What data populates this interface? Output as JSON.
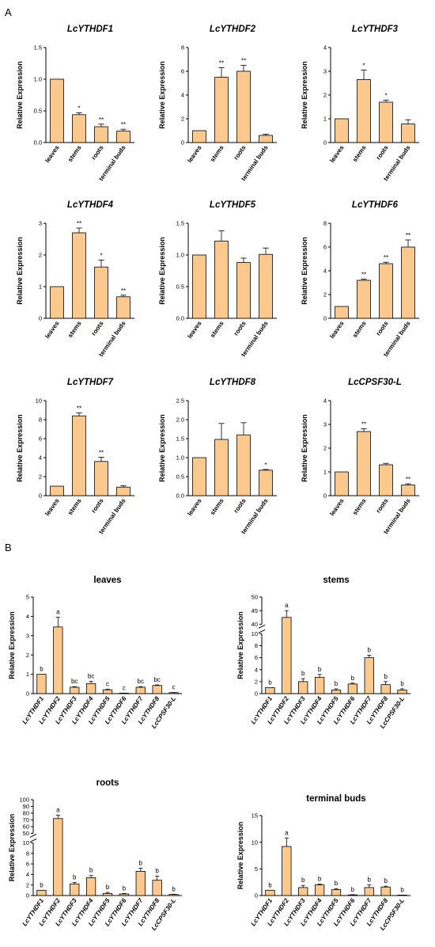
{
  "panel_labels": [
    "A",
    "B"
  ],
  "colors": {
    "bar_fill": "#FBC98E",
    "bar_stroke": "#000000"
  },
  "chart_data": [
    {
      "type": "bar",
      "title": "LcYTHDF1",
      "ylabel": "Relative Expression",
      "categories": [
        "leaves",
        "stems",
        "roots",
        "terminal buds"
      ],
      "values": [
        1.0,
        0.44,
        0.25,
        0.18
      ],
      "errors": [
        0,
        0.03,
        0.04,
        0.03
      ],
      "significance": [
        "",
        "*",
        "**",
        "**"
      ],
      "ylim": [
        0,
        1.5
      ],
      "yticks": [
        "0.0",
        "0.5",
        "1.0",
        "1.5"
      ]
    },
    {
      "type": "bar",
      "title": "LcYTHDF2",
      "ylabel": "Relative Expression",
      "categories": [
        "leaves",
        "stems",
        "roots",
        "terminal buds"
      ],
      "values": [
        1.0,
        5.5,
        6.0,
        0.6
      ],
      "errors": [
        0,
        0.8,
        0.5,
        0.1
      ],
      "significance": [
        "",
        "**",
        "**",
        ""
      ],
      "ylim": [
        0,
        8
      ],
      "yticks": [
        "0",
        "2",
        "4",
        "6",
        "8"
      ]
    },
    {
      "type": "bar",
      "title": "LcYTHDF3",
      "ylabel": "Relative Expression",
      "categories": [
        "leaves",
        "stems",
        "roots",
        "terminal buds"
      ],
      "values": [
        1.0,
        2.65,
        1.7,
        0.78
      ],
      "errors": [
        0,
        0.4,
        0.08,
        0.18
      ],
      "significance": [
        "",
        "*",
        "*",
        ""
      ],
      "ylim": [
        0,
        4
      ],
      "yticks": [
        "0",
        "1",
        "2",
        "3",
        "4"
      ]
    },
    {
      "type": "bar",
      "title": "LcYTHDF4",
      "ylabel": "Relative Expression",
      "categories": [
        "leaves",
        "stems",
        "roots",
        "terminal buds"
      ],
      "values": [
        1.0,
        2.7,
        1.62,
        0.68
      ],
      "errors": [
        0,
        0.15,
        0.22,
        0.05
      ],
      "significance": [
        "",
        "**",
        "*",
        "**"
      ],
      "ylim": [
        0,
        3
      ],
      "yticks": [
        "0",
        "1",
        "2",
        "3"
      ]
    },
    {
      "type": "bar",
      "title": "LcYTHDF5",
      "ylabel": "Relative Expression",
      "categories": [
        "leaves",
        "stems",
        "roots",
        "terminal buds"
      ],
      "values": [
        1.0,
        1.22,
        0.88,
        1.01
      ],
      "errors": [
        0,
        0.16,
        0.07,
        0.1
      ],
      "significance": [
        "",
        "",
        "",
        ""
      ],
      "ylim": [
        0,
        1.5
      ],
      "yticks": [
        "0.0",
        "0.5",
        "1.0",
        "1.5"
      ]
    },
    {
      "type": "bar",
      "title": "LcYTHDF6",
      "ylabel": "Relative Expression",
      "categories": [
        "leaves",
        "stems",
        "roots",
        "terminal buds"
      ],
      "values": [
        1.0,
        3.2,
        4.6,
        6.0
      ],
      "errors": [
        0,
        0.1,
        0.12,
        0.6
      ],
      "significance": [
        "",
        "**",
        "**",
        "**"
      ],
      "ylim": [
        0,
        8
      ],
      "yticks": [
        "0",
        "2",
        "4",
        "6",
        "8"
      ]
    },
    {
      "type": "bar",
      "title": "LcYTHDF7",
      "ylabel": "Relative Expression",
      "categories": [
        "leaves",
        "stems",
        "roots",
        "terminal buds"
      ],
      "values": [
        1.0,
        8.4,
        3.6,
        0.9
      ],
      "errors": [
        0,
        0.3,
        0.45,
        0.15
      ],
      "significance": [
        "",
        "**",
        "**",
        ""
      ],
      "ylim": [
        0,
        10
      ],
      "yticks": [
        "0",
        "2",
        "4",
        "6",
        "8",
        "10"
      ]
    },
    {
      "type": "bar",
      "title": "LcYTHDF8",
      "ylabel": "Relative Expression",
      "categories": [
        "leaves",
        "stems",
        "roots",
        "terminal buds"
      ],
      "values": [
        1.0,
        1.48,
        1.6,
        0.67
      ],
      "errors": [
        0,
        0.42,
        0.32,
        0.02
      ],
      "significance": [
        "",
        "",
        "",
        "*"
      ],
      "ylim": [
        0,
        2.5
      ],
      "yticks": [
        "0.0",
        "0.5",
        "1.0",
        "1.5",
        "2.0",
        "2.5"
      ]
    },
    {
      "type": "bar",
      "title": "LcCPSF30-L",
      "ylabel": "Relative Expression",
      "categories": [
        "leaves",
        "stems",
        "roots",
        "terminal buds"
      ],
      "values": [
        1.0,
        2.7,
        1.3,
        0.45
      ],
      "errors": [
        0,
        0.12,
        0.06,
        0.05
      ],
      "significance": [
        "",
        "**",
        "",
        "**"
      ],
      "ylim": [
        0,
        4
      ],
      "yticks": [
        "0",
        "1",
        "2",
        "3",
        "4"
      ]
    },
    {
      "type": "bar",
      "title": "leaves",
      "ylabel": "Relative Expression",
      "categories": [
        "LcYTHDF1",
        "LcYTHDF2",
        "LcYTHDF3",
        "LcYTHDF4",
        "LcYTHDF5",
        "LcYTHDF6",
        "LcYTHDF7",
        "LcYTHDF8",
        "LcCPSF30-L"
      ],
      "values": [
        1.0,
        3.45,
        0.33,
        0.52,
        0.2,
        0.02,
        0.33,
        0.42,
        0.05
      ],
      "errors": [
        0,
        0.5,
        0.03,
        0.12,
        0.03,
        0.01,
        0.03,
        0.03,
        0.01
      ],
      "significance": [
        "b",
        "a",
        "bc",
        "bc",
        "c",
        "c",
        "bc",
        "bc",
        "c"
      ],
      "ylim": [
        0,
        5
      ],
      "yticks": [
        "0",
        "1",
        "2",
        "3",
        "4",
        "5"
      ]
    },
    {
      "type": "bar",
      "title": "stems",
      "ylabel": "Relative Expression",
      "categories": [
        "LcYTHDF1",
        "LcYTHDF2",
        "LcYTHDF3",
        "LcYTHDF4",
        "LcYTHDF5",
        "LcYTHDF6",
        "LcYTHDF7",
        "LcYTHDF8",
        "LcCPSF30-L"
      ],
      "values": [
        1.0,
        42.5,
        2.0,
        2.7,
        0.6,
        1.6,
        6.0,
        1.5,
        0.6
      ],
      "errors": [
        0,
        2.5,
        0.5,
        0.5,
        0.2,
        0.15,
        0.4,
        0.5,
        0.2
      ],
      "significance": [
        "b",
        "a",
        "b",
        "b",
        "b",
        "b",
        "b",
        "b",
        "b"
      ],
      "yaxis_break": {
        "lower": [
          0,
          10
        ],
        "upper": [
          40,
          50
        ]
      },
      "yticks": [
        "0",
        "2",
        "4",
        "6",
        "8",
        "10",
        "40",
        "45",
        "50"
      ]
    },
    {
      "type": "bar",
      "title": "roots",
      "ylabel": "Relative Expression",
      "categories": [
        "LcYTHDF1",
        "LcYTHDF2",
        "LcYTHDF3",
        "LcYTHDF4",
        "LcYTHDF5",
        "LcYTHDF6",
        "LcYTHDF7",
        "LcYTHDF8",
        "LcCPSF30-L"
      ],
      "values": [
        1.0,
        72,
        2.2,
        3.4,
        0.4,
        0.3,
        4.6,
        2.9,
        0.2
      ],
      "errors": [
        0,
        5,
        0.3,
        0.4,
        0.2,
        0.1,
        0.6,
        0.8,
        0.05
      ],
      "significance": [
        "b",
        "a",
        "b",
        "b",
        "b",
        "b",
        "b",
        "b",
        "b"
      ],
      "yaxis_break": {
        "lower": [
          0,
          10
        ],
        "upper": [
          50,
          100
        ]
      },
      "yticks": [
        "0",
        "2",
        "4",
        "6",
        "8",
        "10",
        "50",
        "60",
        "70",
        "80",
        "90",
        "100"
      ]
    },
    {
      "type": "bar",
      "title": "terminal buds",
      "ylabel": "Relative Expression",
      "categories": [
        "LcYTHDF1",
        "LcYTHDF2",
        "LcYTHDF3",
        "LcYTHDF4",
        "LcYTHDF5",
        "LcYTHDF6",
        "LcYTHDF7",
        "LcYTHDF8",
        "LcCPSF30-L"
      ],
      "values": [
        1.0,
        9.2,
        1.5,
        2.0,
        1.1,
        0.12,
        1.5,
        1.6,
        0.05
      ],
      "errors": [
        0,
        1.6,
        0.4,
        0.15,
        0.2,
        0.05,
        0.5,
        0.15,
        0.02
      ],
      "significance": [
        "b",
        "a",
        "b",
        "b",
        "b",
        "b",
        "b",
        "b",
        "b"
      ],
      "ylim": [
        0,
        15
      ],
      "yticks": [
        "0",
        "5",
        "10",
        "15"
      ]
    }
  ]
}
